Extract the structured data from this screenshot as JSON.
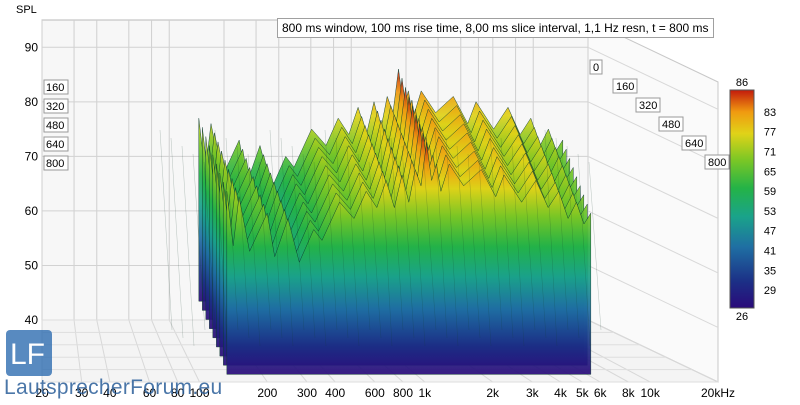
{
  "chart_data": {
    "type": "waterfall-3d",
    "ylabel": "SPL",
    "title": "800 ms window, 100 ms rise time, 8,00 ms slice interval, 1,1 Hz resn, t = 800 ms",
    "x_tick_labels": [
      "20",
      "30",
      "40",
      "60",
      "80",
      "100",
      "200",
      "300",
      "400",
      "600",
      "800",
      "1k",
      "2k",
      "3k",
      "4k",
      "5k",
      "6k",
      "8k",
      "10k",
      "20kHz"
    ],
    "x_tick_values": [
      20,
      30,
      40,
      60,
      80,
      100,
      200,
      300,
      400,
      600,
      800,
      1000,
      2000,
      3000,
      4000,
      5000,
      6000,
      8000,
      10000,
      20000
    ],
    "xlim": [
      20,
      20000
    ],
    "x_scale": "log",
    "y_ticks": [
      40,
      50,
      60,
      70,
      80,
      90
    ],
    "ylim": [
      40,
      95
    ],
    "time_ticks_ms": [
      "0",
      "160",
      "320",
      "480",
      "640",
      "800"
    ],
    "colorbar": {
      "ticks": [
        "86",
        "83",
        "77",
        "71",
        "65",
        "59",
        "53",
        "47",
        "41",
        "35",
        "29",
        "26"
      ],
      "min": 26,
      "max": 86
    },
    "series": [
      {
        "x": [
          60,
          65,
          70,
          80,
          100,
          110,
          130,
          150,
          180,
          200,
          250,
          300,
          350,
          400,
          450,
          500,
          550,
          600,
          650,
          700,
          750,
          800,
          850,
          900,
          1000,
          1200,
          1500,
          1800,
          2000,
          2500,
          3000,
          3500,
          4000,
          4500,
          5000,
          5500,
          6000
        ],
        "values": [
          77,
          71,
          76,
          70,
          73,
          69,
          72,
          68,
          70,
          72,
          75,
          76,
          77,
          78,
          79,
          78,
          80,
          79,
          81,
          82,
          86,
          83,
          82,
          81,
          82,
          82,
          81,
          80,
          80,
          79,
          79,
          78,
          77,
          76,
          75,
          75,
          73
        ]
      }
    ]
  },
  "watermark": {
    "logo_text": "LF",
    "site": "LautsprecherForum.eu"
  }
}
